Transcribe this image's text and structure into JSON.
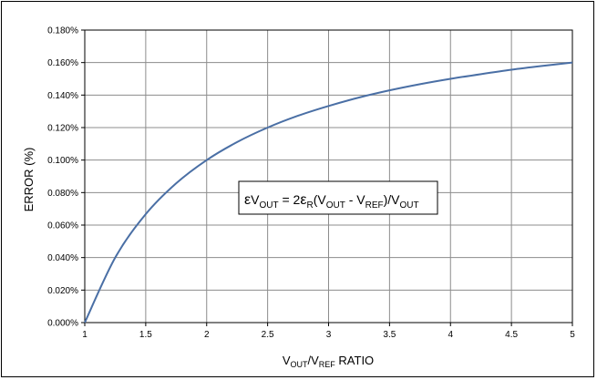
{
  "chart_data": {
    "type": "line",
    "xlabel": "V_OUT/V_REF RATIO",
    "xlabel_parts": {
      "v1": "V",
      "s1": "OUT",
      "slash": "/V",
      "s2": "REF",
      "rest": " RATIO"
    },
    "ylabel": "ERROR (%)",
    "xlim": [
      1,
      5
    ],
    "ylim": [
      0,
      0.18
    ],
    "x_ticks": [
      "1",
      "1.5",
      "2",
      "2.5",
      "3",
      "3.5",
      "4",
      "4.5",
      "5"
    ],
    "y_ticks": [
      "0.000%",
      "0.020%",
      "0.040%",
      "0.060%",
      "0.080%",
      "0.100%",
      "0.120%",
      "0.140%",
      "0.160%",
      "0.180%"
    ],
    "grid": true,
    "series": [
      {
        "color": "#4a6fa5",
        "x": [
          1,
          1.25,
          1.5,
          1.75,
          2,
          2.25,
          2.5,
          2.75,
          3,
          3.25,
          3.5,
          3.75,
          4,
          4.25,
          4.5,
          4.75,
          5
        ],
        "y": [
          0,
          0.04,
          0.0667,
          0.0857,
          0.1,
          0.1111,
          0.12,
          0.1273,
          0.1333,
          0.1385,
          0.1429,
          0.1467,
          0.15,
          0.1529,
          0.1556,
          0.1579,
          0.16
        ]
      }
    ],
    "annotation": {
      "formula": "εVOUT = 2εR(VOUT - VREF)/VOUT",
      "parts": {
        "eps1": "ε",
        "v1": "V",
        "s1": "OUT",
        "eq": " = 2",
        "eps2": "ε",
        "s2": "R",
        "p1": "(V",
        "s3": "OUT",
        "minus": " - V",
        "s4": "REF",
        "p2": ")/V",
        "s5": "OUT"
      }
    }
  }
}
